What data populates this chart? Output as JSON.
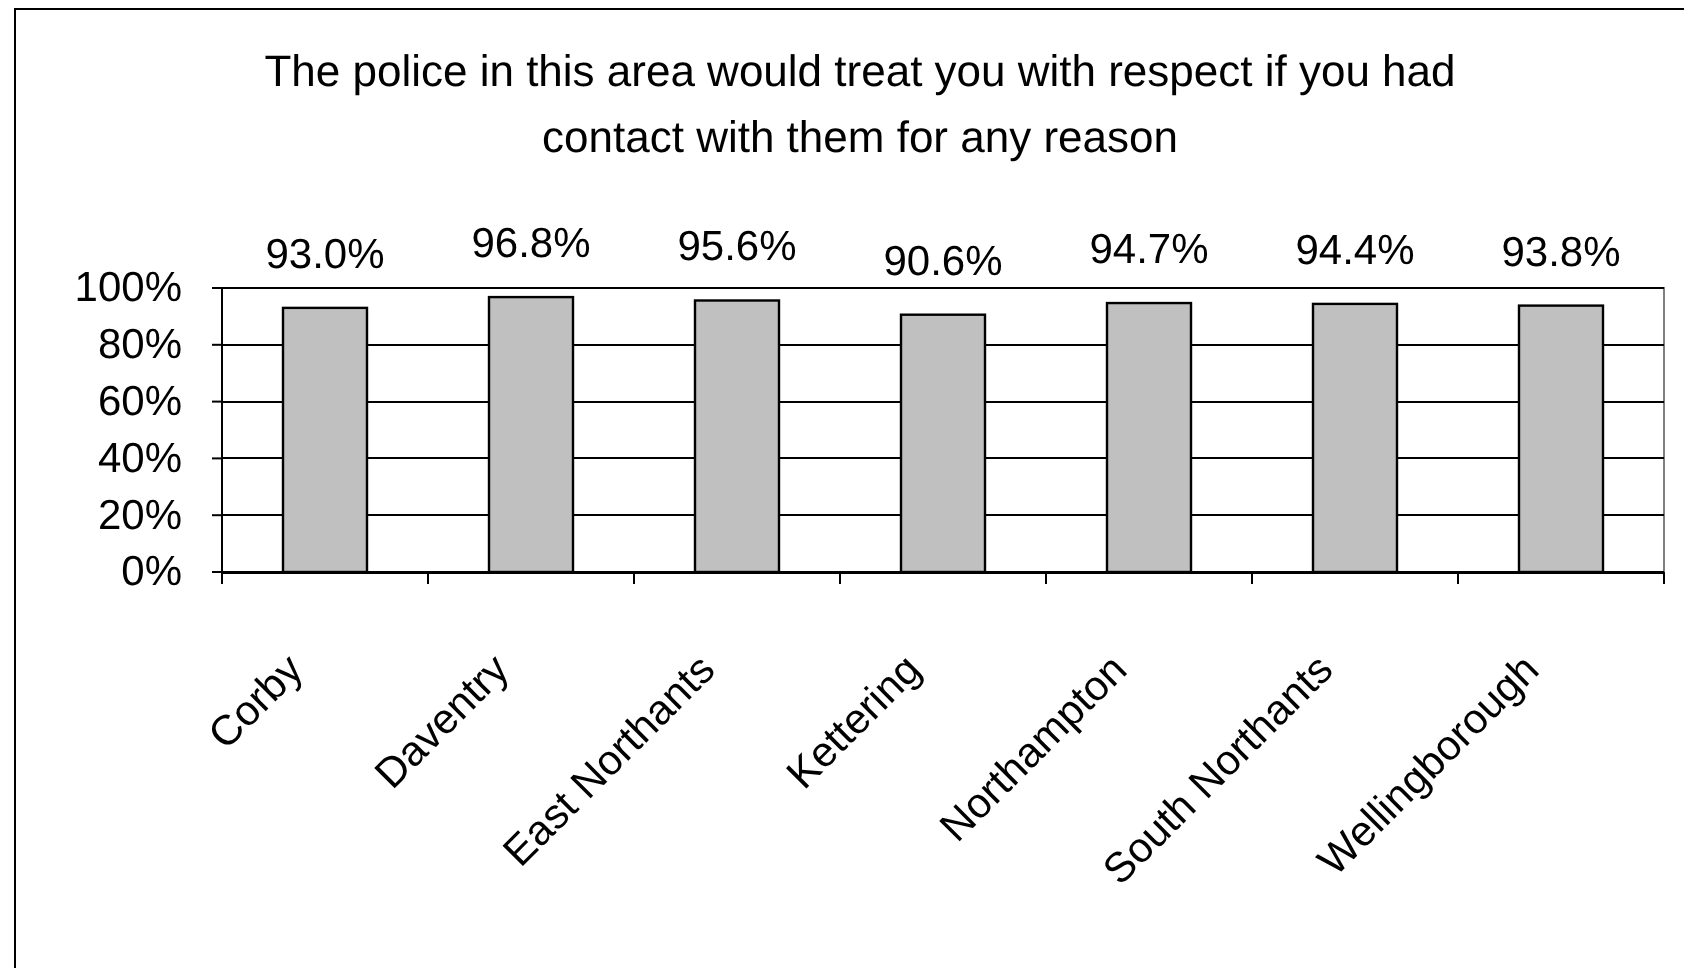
{
  "chart_data": {
    "type": "bar",
    "title": "The police in this area would treat you with respect if you had contact with them for any reason",
    "categories": [
      "Corby",
      "Daventry",
      "East Northants",
      "Kettering",
      "Northampton",
      "South Northants",
      "Wellingborough"
    ],
    "values": [
      93.0,
      96.8,
      95.6,
      90.6,
      94.7,
      94.4,
      93.8
    ],
    "value_labels": [
      "93.0%",
      "96.8%",
      "95.6%",
      "90.6%",
      "94.7%",
      "94.4%",
      "93.8%"
    ],
    "color": "#c0c0c0",
    "ylim": [
      0,
      100
    ],
    "yticks": [
      {
        "value": 0,
        "label": "0%"
      },
      {
        "value": 20,
        "label": "20%"
      },
      {
        "value": 40,
        "label": "40%"
      },
      {
        "value": 60,
        "label": "60%"
      },
      {
        "value": 80,
        "label": "80%"
      },
      {
        "value": 100,
        "label": "100%"
      }
    ],
    "grid": "y"
  }
}
